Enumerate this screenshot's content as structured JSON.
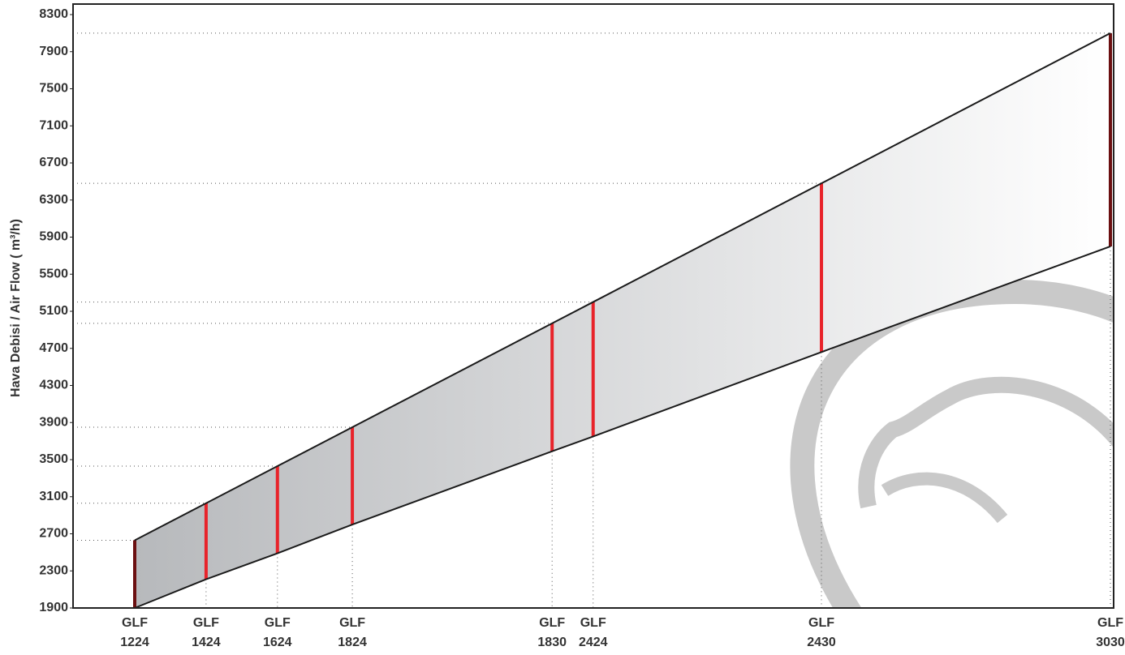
{
  "chart_data": {
    "type": "range",
    "y_label": "Hava Debisi /  Air Flow ( m³/h)",
    "categories": [
      [
        "GLF",
        "1224"
      ],
      [
        "GLF",
        "1424"
      ],
      [
        "GLF",
        "1624"
      ],
      [
        "GLF",
        "1824"
      ],
      [
        "GLF",
        "1830"
      ],
      [
        "GLF",
        "2424"
      ],
      [
        "GLF",
        "2430"
      ],
      [
        "GLF",
        "3030"
      ]
    ],
    "series": [
      {
        "color": "#e8232a",
        "values": [
          1900,
          2210,
          2490,
          2800,
          3590,
          3750,
          4660,
          5800
        ]
      },
      {
        "color": "#e8232a",
        "values": [
          2630,
          3030,
          3430,
          3850,
          4970,
          5200,
          6480,
          8100
        ]
      }
    ],
    "end_color": "#6b0f10",
    "ylim": [
      1900,
      8300
    ],
    "yticks": [
      1900,
      2300,
      2700,
      3100,
      3500,
      3900,
      4300,
      4700,
      5100,
      5500,
      5900,
      6300,
      6700,
      7100,
      7500,
      7900,
      8300
    ]
  }
}
